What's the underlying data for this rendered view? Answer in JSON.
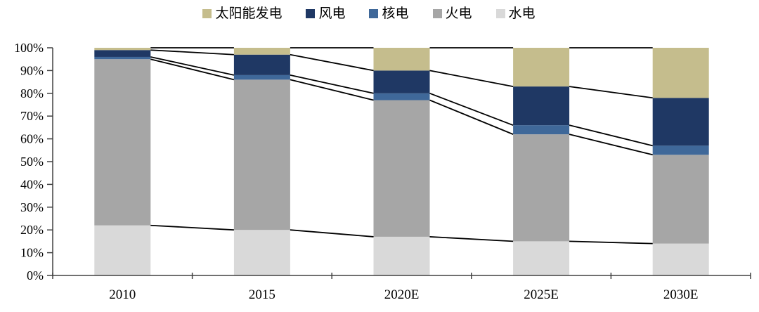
{
  "legend": {
    "items": [
      {
        "key": "solar",
        "label": "太阳能发电",
        "color": "#c5bd8d"
      },
      {
        "key": "wind",
        "label": "风电",
        "color": "#1f3864"
      },
      {
        "key": "nuclear",
        "label": "核电",
        "color": "#3f6899"
      },
      {
        "key": "thermal",
        "label": "火电",
        "color": "#a6a6a6"
      },
      {
        "key": "hydro",
        "label": "水电",
        "color": "#d9d9d9"
      }
    ]
  },
  "chart_data": {
    "type": "bar",
    "variant": "100-percent-stacked-column-with-series-lines",
    "title": "",
    "xlabel": "",
    "ylabel": "",
    "categories": [
      "2010",
      "2015",
      "2020E",
      "2025E",
      "2030E"
    ],
    "stack_order": "bottom-to-top",
    "series": [
      {
        "key": "hydro",
        "name": "水电",
        "color": "#d9d9d9",
        "values": [
          22,
          20,
          17,
          15,
          14
        ]
      },
      {
        "key": "thermal",
        "name": "火电",
        "color": "#a6a6a6",
        "values": [
          73,
          66,
          60,
          47,
          39
        ]
      },
      {
        "key": "nuclear",
        "name": "核电",
        "color": "#3f6899",
        "values": [
          1,
          2,
          3,
          4,
          4
        ]
      },
      {
        "key": "wind",
        "name": "风电",
        "color": "#1f3864",
        "values": [
          3,
          9,
          10,
          17,
          21
        ]
      },
      {
        "key": "solar",
        "name": "太阳能发电",
        "color": "#c5bd8d",
        "values": [
          1,
          3,
          10,
          17,
          22
        ]
      }
    ],
    "y_axis": {
      "min": 0,
      "max": 100,
      "step": 10,
      "format": "percent",
      "tick_labels": [
        "0%",
        "10%",
        "20%",
        "30%",
        "40%",
        "50%",
        "60%",
        "70%",
        "80%",
        "90%",
        "100%"
      ]
    },
    "x_axis": {
      "tick_labels": [
        "2010",
        "2015",
        "2020E",
        "2025E",
        "2030E"
      ]
    },
    "legend_position": "top",
    "grid": false,
    "connector_lines": {
      "enabled": true,
      "color": "#000000"
    },
    "axis_color": "#404040"
  }
}
